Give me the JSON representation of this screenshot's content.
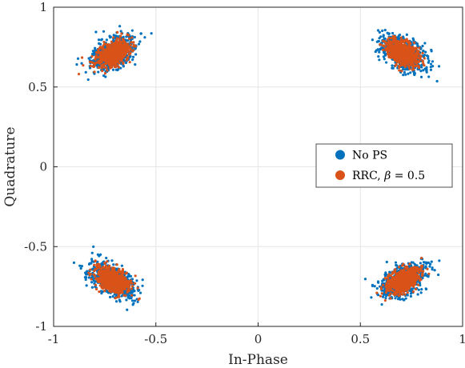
{
  "chart_data": {
    "type": "scatter",
    "title": "",
    "xlabel": "In-Phase",
    "ylabel": "Quadrature",
    "xlim": [
      -1,
      1
    ],
    "ylim": [
      -1,
      1
    ],
    "xticks": [
      -1,
      -0.5,
      0,
      0.5,
      1
    ],
    "yticks": [
      -1,
      -0.5,
      0,
      0.5,
      1
    ],
    "xtick_labels": [
      "-1",
      "-0.5",
      "0",
      "0.5",
      "1"
    ],
    "ytick_labels": [
      "-1",
      "-0.5",
      "0",
      "0.5",
      "1"
    ],
    "grid": true,
    "legend_position": "right",
    "series": [
      {
        "name": "No PS",
        "color": "#0072BD",
        "clusters": [
          {
            "center": [
              -0.71,
              0.71
            ],
            "spread": 0.085
          },
          {
            "center": [
              0.71,
              0.71
            ],
            "spread": 0.085
          },
          {
            "center": [
              -0.71,
              -0.71
            ],
            "spread": 0.085
          },
          {
            "center": [
              0.71,
              -0.71
            ],
            "spread": 0.085
          }
        ],
        "points_per_cluster": 700
      },
      {
        "name": "RRC, β = 0.5",
        "color": "#D95319",
        "clusters": [
          {
            "center": [
              -0.71,
              0.71
            ],
            "spread": 0.065
          },
          {
            "center": [
              0.71,
              0.71
            ],
            "spread": 0.065
          },
          {
            "center": [
              -0.71,
              -0.71
            ],
            "spread": 0.065
          },
          {
            "center": [
              0.71,
              -0.71
            ],
            "spread": 0.065
          }
        ],
        "points_per_cluster": 700
      }
    ],
    "legend": {
      "entries": [
        {
          "label": "No PS",
          "color": "#0072BD"
        },
        {
          "label_prefix": "RRC, ",
          "label_symbol": "β",
          "label_suffix": " = 0.5",
          "color": "#D95319"
        }
      ]
    }
  }
}
